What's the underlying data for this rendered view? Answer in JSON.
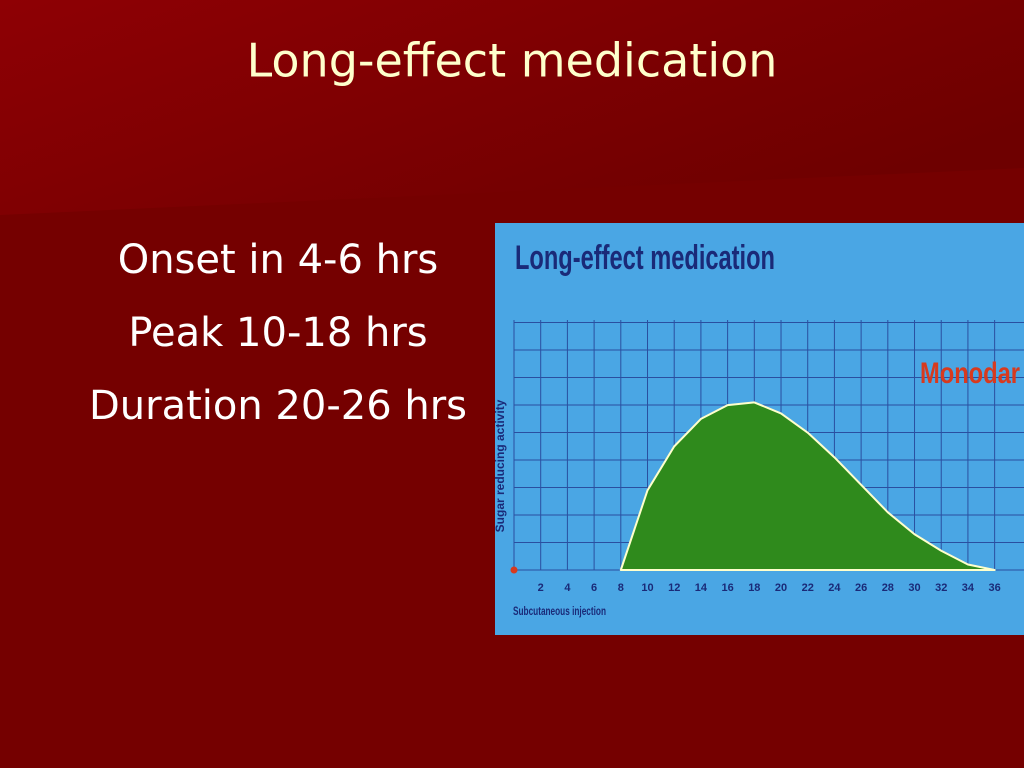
{
  "slide": {
    "title": "Long-effect medication",
    "lines": [
      "Onset in 4-6 hrs",
      "Peak 10-18 hrs",
      "Duration 20-26 hrs"
    ]
  },
  "chart_data": {
    "type": "area",
    "title": "Long-effect medication",
    "y_label": "Sugar reducing activity",
    "x_label": "Subcutaneous injection",
    "x": [
      8,
      10,
      12,
      14,
      16,
      18,
      20,
      22,
      24,
      26,
      28,
      30,
      32,
      34,
      36
    ],
    "series": [
      {
        "name": "Monodar",
        "color": "#2f8a1c",
        "label_color": "#d83a1e",
        "values": [
          0,
          2.9,
          4.5,
          5.5,
          6.0,
          6.1,
          5.7,
          5.0,
          4.1,
          3.1,
          2.1,
          1.3,
          0.7,
          0.2,
          0
        ]
      }
    ],
    "xlim": [
      0,
      38.2
    ],
    "ylim": [
      0,
      9.1
    ],
    "xticks": [
      2,
      4,
      6,
      8,
      10,
      12,
      14,
      16,
      18,
      20,
      22,
      24,
      26,
      28,
      30,
      32,
      34,
      36
    ],
    "grid": true
  }
}
